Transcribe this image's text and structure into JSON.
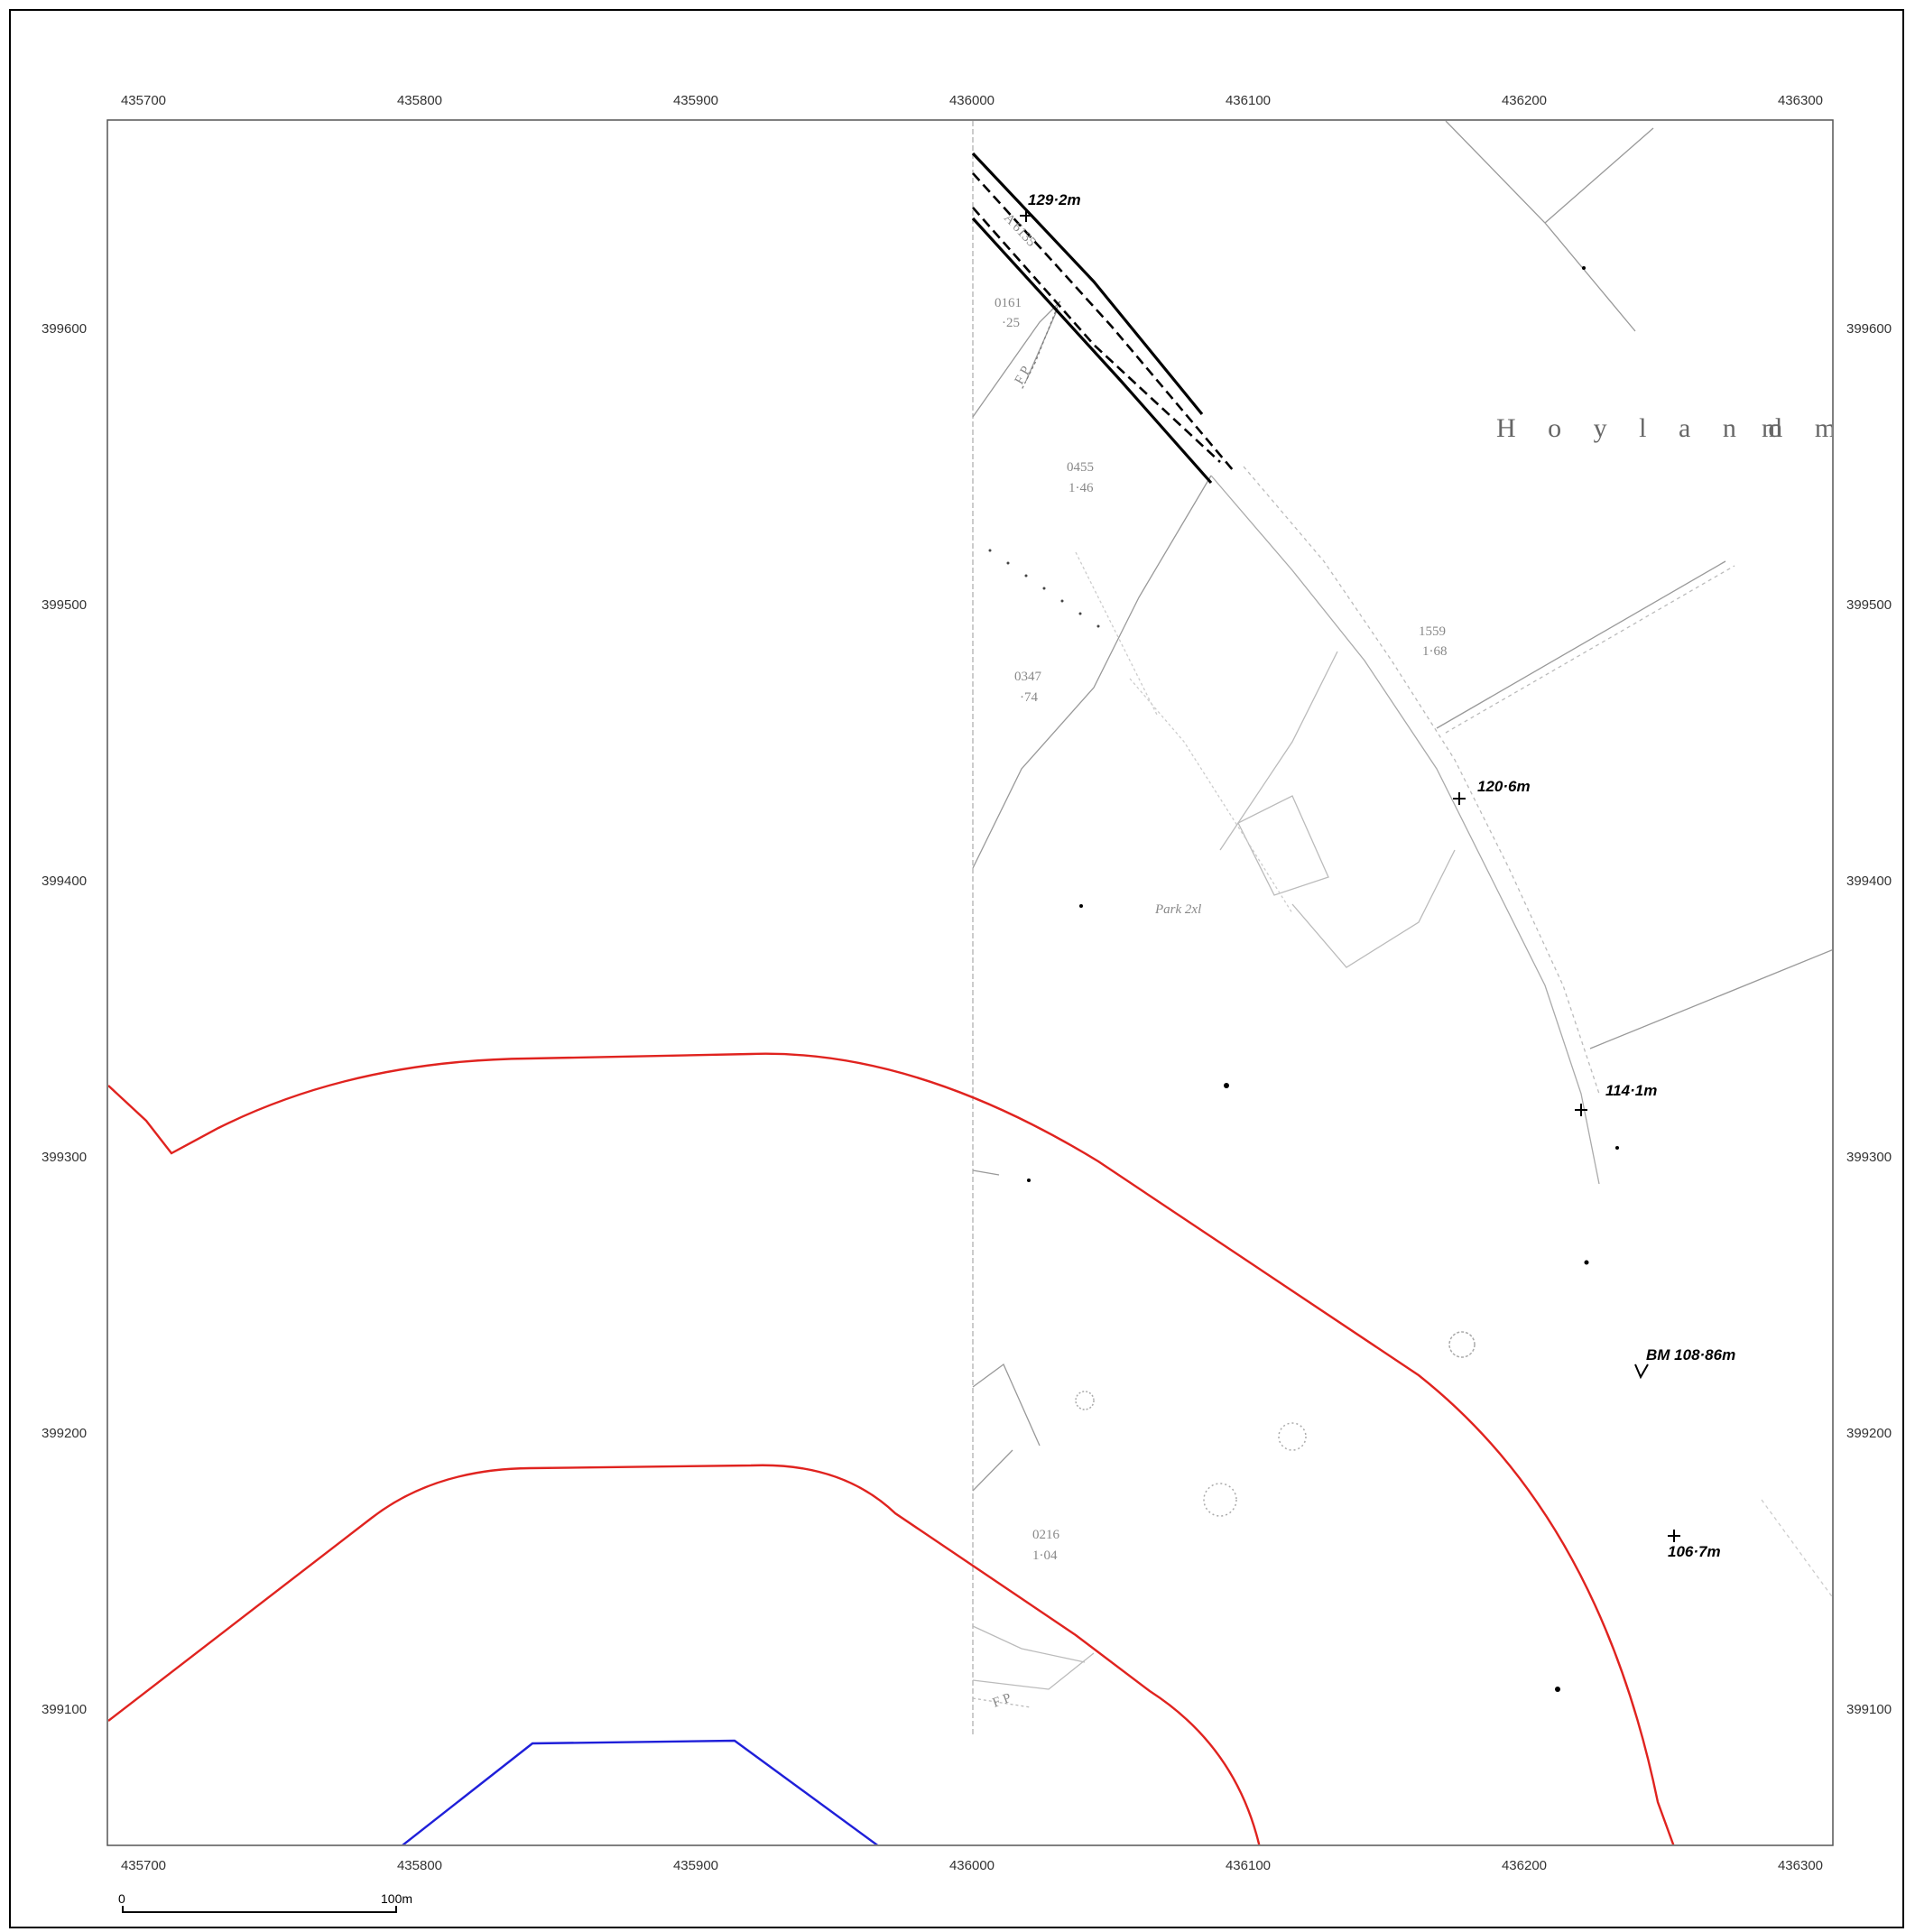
{
  "map": {
    "x_ticks": [
      "435700",
      "435800",
      "435900",
      "436000",
      "436100",
      "436200",
      "436300"
    ],
    "y_ticks": [
      "399600",
      "399500",
      "399400",
      "399300",
      "399200",
      "399100"
    ],
    "place_name": "H o y l a n d",
    "place_name_suffix": "m m",
    "road_label": "A 6135",
    "footpath_labels": [
      "F P",
      "F P"
    ],
    "spot_heights": [
      "129·2m",
      "120·6m",
      "114·1m",
      "106·7m"
    ],
    "benchmark": "BM 108·86m",
    "parcel_labels": [
      {
        "id": "0161",
        "area": "·25"
      },
      {
        "id": "0455",
        "area": "1·46"
      },
      {
        "id": "0347",
        "area": "·74"
      },
      {
        "id": "1559",
        "area": "1·68"
      },
      {
        "id": "0216",
        "area": "1·04"
      }
    ],
    "park_label": "Park 2xl"
  },
  "scale_bar": {
    "start": "0",
    "end": "100m"
  },
  "colors": {
    "buffer_line": "#e0231f",
    "site_line": "#1f1fd9",
    "frame": "#000000"
  }
}
